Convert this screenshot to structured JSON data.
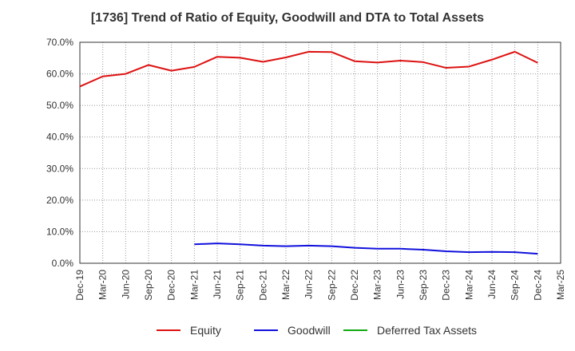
{
  "chart_data": {
    "type": "line",
    "title": "[1736]  Trend of Ratio of Equity, Goodwill and DTA to Total Assets",
    "xlabel": "",
    "ylabel": "",
    "ylim": [
      0,
      70
    ],
    "y_ticks": [
      "0.0%",
      "10.0%",
      "20.0%",
      "30.0%",
      "40.0%",
      "50.0%",
      "60.0%",
      "70.0%"
    ],
    "categories": [
      "Dec-19",
      "Mar-20",
      "Jun-20",
      "Sep-20",
      "Dec-20",
      "Mar-21",
      "Jun-21",
      "Sep-21",
      "Dec-21",
      "Mar-22",
      "Jun-22",
      "Sep-22",
      "Dec-22",
      "Mar-23",
      "Jun-23",
      "Sep-23",
      "Dec-23",
      "Mar-24",
      "Jun-24",
      "Sep-24",
      "Dec-24",
      "Mar-25"
    ],
    "grid": true,
    "legend_position": "bottom",
    "series": [
      {
        "name": "Equity",
        "color": "#dd1111",
        "values": [
          56.0,
          59.2,
          60.0,
          62.8,
          61.0,
          62.2,
          65.4,
          65.1,
          63.8,
          65.2,
          67.0,
          66.9,
          64.0,
          63.6,
          64.2,
          63.7,
          61.9,
          62.3,
          64.5,
          67.0,
          63.5,
          null
        ]
      },
      {
        "name": "Goodwill",
        "color": "#1111dd",
        "values": [
          null,
          null,
          null,
          null,
          null,
          6.0,
          6.3,
          6.0,
          5.6,
          5.4,
          5.6,
          5.4,
          4.9,
          4.6,
          4.6,
          4.3,
          3.8,
          3.5,
          3.6,
          3.5,
          3.0,
          null
        ]
      },
      {
        "name": "Deferred Tax Assets",
        "color": "#11aa11",
        "values": [
          null,
          null,
          null,
          null,
          null,
          null,
          null,
          null,
          null,
          null,
          null,
          null,
          null,
          null,
          null,
          null,
          null,
          null,
          null,
          null,
          null,
          null
        ]
      }
    ]
  }
}
